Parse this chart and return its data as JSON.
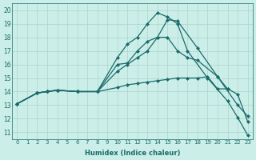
{
  "xlabel": "Humidex (Indice chaleur)",
  "background_color": "#cceee8",
  "line_color": "#1a6b6b",
  "grid_color": "#aad4ce",
  "xlim": [
    -0.5,
    23.5
  ],
  "ylim": [
    10.5,
    20.5
  ],
  "xticks": [
    0,
    1,
    2,
    3,
    4,
    5,
    6,
    7,
    8,
    9,
    10,
    11,
    12,
    13,
    14,
    15,
    16,
    17,
    18,
    19,
    20,
    21,
    22,
    23
  ],
  "yticks": [
    11,
    12,
    13,
    14,
    15,
    16,
    17,
    18,
    19,
    20
  ],
  "line1_x": [
    0,
    2,
    3,
    4,
    6,
    8,
    10,
    11,
    12,
    13,
    14,
    15,
    16,
    17,
    18,
    20,
    22,
    23
  ],
  "line1_y": [
    13.1,
    13.9,
    14.0,
    14.1,
    14.0,
    14.0,
    16.0,
    16.1,
    17.0,
    17.7,
    18.0,
    18.0,
    17.0,
    16.5,
    16.3,
    15.1,
    13.0,
    12.2
  ],
  "line2_x": [
    0,
    2,
    3,
    4,
    6,
    8,
    10,
    11,
    12,
    13,
    14,
    15,
    16,
    17,
    19,
    21,
    22,
    23
  ],
  "line2_y": [
    13.1,
    13.9,
    14.0,
    14.1,
    14.0,
    14.0,
    16.5,
    17.5,
    18.0,
    19.0,
    19.8,
    19.5,
    19.0,
    17.0,
    15.0,
    13.3,
    12.1,
    10.8
  ],
  "line3_x": [
    0,
    2,
    3,
    4,
    6,
    8,
    10,
    11,
    12,
    13,
    14,
    15,
    16,
    18,
    20,
    21,
    22,
    23
  ],
  "line3_y": [
    13.1,
    13.9,
    14.0,
    14.1,
    14.0,
    14.0,
    15.5,
    16.0,
    16.5,
    17.0,
    18.0,
    19.3,
    19.2,
    17.2,
    15.1,
    14.2,
    13.8,
    11.8
  ],
  "line4_x": [
    0,
    2,
    3,
    4,
    6,
    8,
    10,
    11,
    12,
    13,
    14,
    15,
    16,
    17,
    18,
    19,
    20,
    21
  ],
  "line4_y": [
    13.1,
    13.9,
    14.0,
    14.1,
    14.0,
    14.0,
    14.3,
    14.5,
    14.6,
    14.7,
    14.8,
    14.9,
    15.0,
    15.0,
    15.0,
    15.1,
    14.2,
    14.2
  ]
}
